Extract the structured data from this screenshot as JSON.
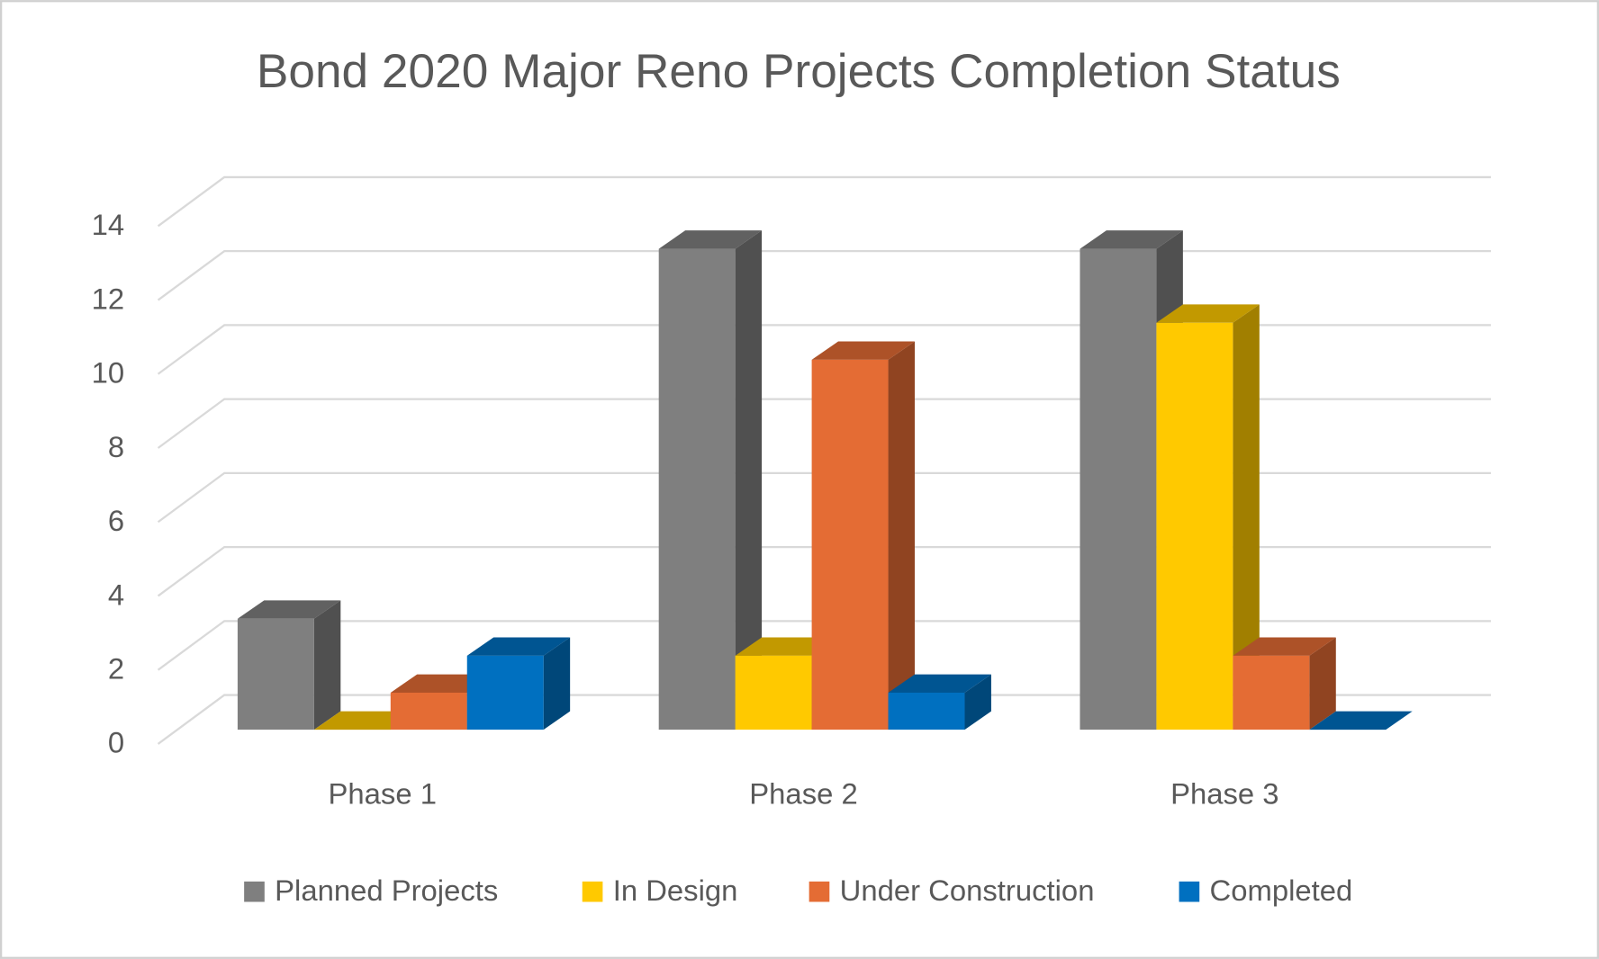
{
  "chart_data": {
    "type": "bar3d",
    "title": "Bond 2020 Major Reno Projects Completion Status",
    "categories": [
      "Phase 1",
      "Phase 2",
      "Phase 3"
    ],
    "series": [
      {
        "name": "Planned Projects",
        "color": "#7f7f7f",
        "values": [
          3,
          13,
          13
        ]
      },
      {
        "name": "In Design",
        "color": "#ffc900",
        "values": [
          0,
          2,
          11
        ]
      },
      {
        "name": "Under Construction",
        "color": "#e46c34",
        "values": [
          1,
          10,
          2
        ]
      },
      {
        "name": "Completed",
        "color": "#0070c0",
        "values": [
          2,
          1,
          0
        ]
      }
    ],
    "ylim": [
      0,
      14
    ],
    "yticks": [
      0,
      2,
      4,
      6,
      8,
      10,
      12,
      14
    ],
    "grid": true,
    "legend": "bottom"
  }
}
